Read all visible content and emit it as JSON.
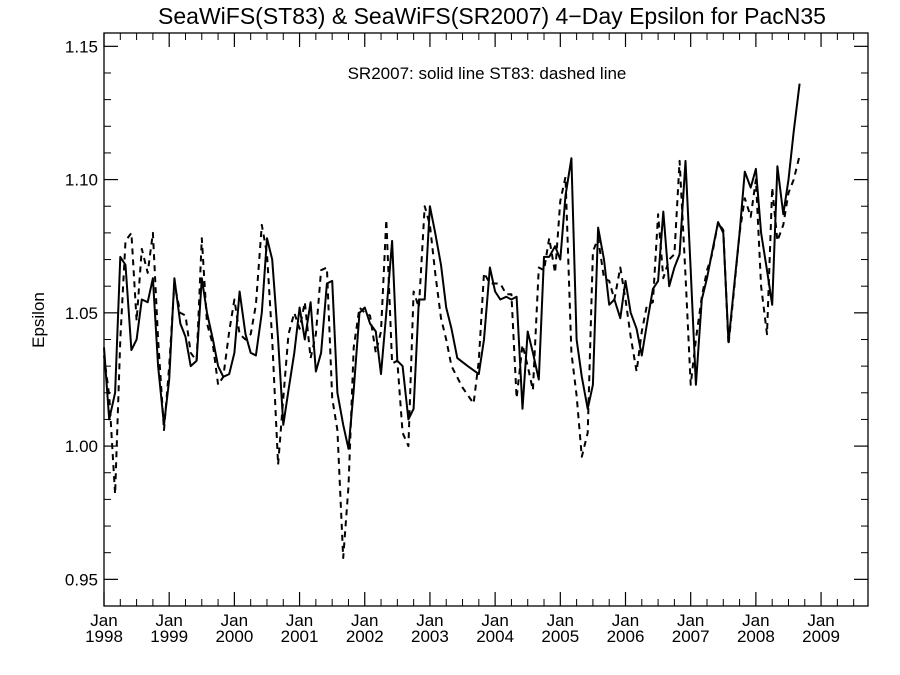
{
  "chart_data": {
    "type": "line",
    "title": "SeaWiFS(ST83) & SeaWiFS(SR2007) 4−Day Epsilon for PacN35",
    "annotation": "SR2007: solid line   ST83: dashed line",
    "xlabel": "",
    "ylabel": "Epsilon",
    "xlim": [
      1998.0,
      2009.72
    ],
    "ylim": [
      0.94,
      1.155
    ],
    "yticks": [
      0.95,
      1.0,
      1.05,
      1.1,
      1.15
    ],
    "ytick_labels": [
      "0.95",
      "1.00",
      "1.05",
      "1.10",
      "1.15"
    ],
    "xticks": [
      {
        "x": 1998,
        "month": "Jan",
        "year": "1998"
      },
      {
        "x": 1999,
        "month": "Jan",
        "year": "1999"
      },
      {
        "x": 2000,
        "month": "Jan",
        "year": "2000"
      },
      {
        "x": 2001,
        "month": "Jan",
        "year": "2001"
      },
      {
        "x": 2002,
        "month": "Jan",
        "year": "2002"
      },
      {
        "x": 2003,
        "month": "Jan",
        "year": "2003"
      },
      {
        "x": 2004,
        "month": "Jan",
        "year": "2004"
      },
      {
        "x": 2005,
        "month": "Jan",
        "year": "2005"
      },
      {
        "x": 2006,
        "month": "Jan",
        "year": "2006"
      },
      {
        "x": 2007,
        "month": "Jan",
        "year": "2007"
      },
      {
        "x": 2008,
        "month": "Jan",
        "year": "2008"
      },
      {
        "x": 2009,
        "month": "Jan",
        "year": "2009"
      }
    ],
    "grid": false,
    "series": [
      {
        "name": "SR2007",
        "style": "solid",
        "color": "#000000",
        "points": [
          [
            1998.0,
            1.037
          ],
          [
            1998.08,
            1.01
          ],
          [
            1998.17,
            1.02
          ],
          [
            1998.25,
            1.071
          ],
          [
            1998.33,
            1.068
          ],
          [
            1998.42,
            1.036
          ],
          [
            1998.5,
            1.04
          ],
          [
            1998.58,
            1.055
          ],
          [
            1998.67,
            1.054
          ],
          [
            1998.75,
            1.063
          ],
          [
            1998.83,
            1.03
          ],
          [
            1998.92,
            1.008
          ],
          [
            1999.0,
            1.025
          ],
          [
            1999.08,
            1.063
          ],
          [
            1999.17,
            1.046
          ],
          [
            1999.25,
            1.041
          ],
          [
            1999.33,
            1.03
          ],
          [
            1999.42,
            1.032
          ],
          [
            1999.5,
            1.063
          ],
          [
            1999.58,
            1.05
          ],
          [
            1999.67,
            1.04
          ],
          [
            1999.75,
            1.03
          ],
          [
            1999.83,
            1.026
          ],
          [
            1999.92,
            1.027
          ],
          [
            2000.0,
            1.035
          ],
          [
            2000.08,
            1.058
          ],
          [
            2000.17,
            1.042
          ],
          [
            2000.25,
            1.035
          ],
          [
            2000.33,
            1.034
          ],
          [
            2000.42,
            1.05
          ],
          [
            2000.5,
            1.078
          ],
          [
            2000.58,
            1.07
          ],
          [
            2000.67,
            1.04
          ],
          [
            2000.75,
            1.008
          ],
          [
            2000.83,
            1.021
          ],
          [
            2000.92,
            1.035
          ],
          [
            2001.0,
            1.052
          ],
          [
            2001.08,
            1.04
          ],
          [
            2001.17,
            1.054
          ],
          [
            2001.25,
            1.028
          ],
          [
            2001.33,
            1.035
          ],
          [
            2001.42,
            1.061
          ],
          [
            2001.5,
            1.062
          ],
          [
            2001.58,
            1.02
          ],
          [
            2001.67,
            1.008
          ],
          [
            2001.75,
            0.999
          ],
          [
            2001.83,
            1.021
          ],
          [
            2001.92,
            1.05
          ],
          [
            2002.0,
            1.052
          ],
          [
            2002.08,
            1.046
          ],
          [
            2002.17,
            1.043
          ],
          [
            2002.25,
            1.027
          ],
          [
            2002.33,
            1.05
          ],
          [
            2002.42,
            1.077
          ],
          [
            2002.5,
            1.032
          ],
          [
            2002.58,
            1.03
          ],
          [
            2002.67,
            1.01
          ],
          [
            2002.75,
            1.014
          ],
          [
            2002.83,
            1.055
          ],
          [
            2002.92,
            1.055
          ],
          [
            2003.0,
            1.09
          ],
          [
            2003.08,
            1.08
          ],
          [
            2003.17,
            1.068
          ],
          [
            2003.25,
            1.052
          ],
          [
            2003.33,
            1.044
          ],
          [
            2003.42,
            1.033
          ],
          [
            2003.58,
            1.03
          ],
          [
            2003.75,
            1.027
          ],
          [
            2003.83,
            1.04
          ],
          [
            2003.92,
            1.067
          ],
          [
            2004.0,
            1.058
          ],
          [
            2004.08,
            1.055
          ],
          [
            2004.17,
            1.056
          ],
          [
            2004.25,
            1.055
          ],
          [
            2004.33,
            1.056
          ],
          [
            2004.42,
            1.014
          ],
          [
            2004.5,
            1.043
          ],
          [
            2004.58,
            1.035
          ],
          [
            2004.67,
            1.025
          ],
          [
            2004.75,
            1.071
          ],
          [
            2004.83,
            1.071
          ],
          [
            2004.92,
            1.075
          ],
          [
            2005.0,
            1.07
          ],
          [
            2005.08,
            1.094
          ],
          [
            2005.17,
            1.108
          ],
          [
            2005.25,
            1.04
          ],
          [
            2005.33,
            1.026
          ],
          [
            2005.42,
            1.014
          ],
          [
            2005.5,
            1.023
          ],
          [
            2005.58,
            1.082
          ],
          [
            2005.67,
            1.07
          ],
          [
            2005.75,
            1.053
          ],
          [
            2005.83,
            1.055
          ],
          [
            2005.92,
            1.048
          ],
          [
            2006.0,
            1.062
          ],
          [
            2006.08,
            1.05
          ],
          [
            2006.17,
            1.044
          ],
          [
            2006.25,
            1.034
          ],
          [
            2006.33,
            1.046
          ],
          [
            2006.42,
            1.059
          ],
          [
            2006.5,
            1.062
          ],
          [
            2006.58,
            1.088
          ],
          [
            2006.67,
            1.06
          ],
          [
            2006.75,
            1.067
          ],
          [
            2006.83,
            1.072
          ],
          [
            2006.92,
            1.107
          ],
          [
            2007.0,
            1.066
          ],
          [
            2007.08,
            1.023
          ],
          [
            2007.17,
            1.055
          ],
          [
            2007.25,
            1.063
          ],
          [
            2007.33,
            1.073
          ],
          [
            2007.42,
            1.084
          ],
          [
            2007.5,
            1.08
          ],
          [
            2007.58,
            1.039
          ],
          [
            2007.67,
            1.061
          ],
          [
            2007.75,
            1.08
          ],
          [
            2007.83,
            1.103
          ],
          [
            2007.92,
            1.097
          ],
          [
            2008.0,
            1.104
          ],
          [
            2008.08,
            1.08
          ],
          [
            2008.17,
            1.066
          ],
          [
            2008.25,
            1.053
          ],
          [
            2008.33,
            1.105
          ],
          [
            2008.42,
            1.087
          ],
          [
            2008.5,
            1.1
          ],
          [
            2008.58,
            1.118
          ],
          [
            2008.67,
            1.136
          ]
        ]
      },
      {
        "name": "ST83",
        "style": "dashed",
        "color": "#000000",
        "points": [
          [
            1998.0,
            1.034
          ],
          [
            1998.08,
            1.019
          ],
          [
            1998.17,
            0.982
          ],
          [
            1998.25,
            1.04
          ],
          [
            1998.33,
            1.077
          ],
          [
            1998.42,
            1.08
          ],
          [
            1998.5,
            1.047
          ],
          [
            1998.58,
            1.074
          ],
          [
            1998.67,
            1.065
          ],
          [
            1998.75,
            1.08
          ],
          [
            1998.83,
            1.04
          ],
          [
            1998.92,
            1.006
          ],
          [
            1999.0,
            1.03
          ],
          [
            1999.08,
            1.061
          ],
          [
            1999.17,
            1.05
          ],
          [
            1999.25,
            1.049
          ],
          [
            1999.33,
            1.035
          ],
          [
            1999.42,
            1.032
          ],
          [
            1999.5,
            1.078
          ],
          [
            1999.58,
            1.046
          ],
          [
            1999.67,
            1.038
          ],
          [
            1999.75,
            1.023
          ],
          [
            1999.83,
            1.026
          ],
          [
            1999.92,
            1.043
          ],
          [
            2000.0,
            1.055
          ],
          [
            2000.08,
            1.042
          ],
          [
            2000.17,
            1.04
          ],
          [
            2000.25,
            1.042
          ],
          [
            2000.33,
            1.053
          ],
          [
            2000.42,
            1.083
          ],
          [
            2000.5,
            1.072
          ],
          [
            2000.58,
            1.04
          ],
          [
            2000.67,
            0.993
          ],
          [
            2000.75,
            1.018
          ],
          [
            2000.83,
            1.042
          ],
          [
            2000.92,
            1.05
          ],
          [
            2001.0,
            1.044
          ],
          [
            2001.08,
            1.054
          ],
          [
            2001.17,
            1.033
          ],
          [
            2001.25,
            1.042
          ],
          [
            2001.33,
            1.066
          ],
          [
            2001.42,
            1.067
          ],
          [
            2001.5,
            1.018
          ],
          [
            2001.58,
            1.006
          ],
          [
            2001.67,
            0.958
          ],
          [
            2001.75,
            0.985
          ],
          [
            2001.83,
            1.037
          ],
          [
            2001.92,
            1.052
          ],
          [
            2002.0,
            1.05
          ],
          [
            2002.08,
            1.049
          ],
          [
            2002.17,
            1.035
          ],
          [
            2002.25,
            1.043
          ],
          [
            2002.33,
            1.085
          ],
          [
            2002.42,
            1.031
          ],
          [
            2002.5,
            1.032
          ],
          [
            2002.58,
            1.005
          ],
          [
            2002.67,
            1.0
          ],
          [
            2002.75,
            1.058
          ],
          [
            2002.83,
            1.052
          ],
          [
            2002.92,
            1.09
          ],
          [
            2003.0,
            1.083
          ],
          [
            2003.08,
            1.065
          ],
          [
            2003.17,
            1.048
          ],
          [
            2003.25,
            1.04
          ],
          [
            2003.33,
            1.03
          ],
          [
            2003.5,
            1.022
          ],
          [
            2003.67,
            1.016
          ],
          [
            2003.75,
            1.032
          ],
          [
            2003.83,
            1.065
          ],
          [
            2003.92,
            1.061
          ],
          [
            2004.0,
            1.061
          ],
          [
            2004.08,
            1.061
          ],
          [
            2004.17,
            1.057
          ],
          [
            2004.25,
            1.057
          ],
          [
            2004.33,
            1.018
          ],
          [
            2004.42,
            1.038
          ],
          [
            2004.5,
            1.03
          ],
          [
            2004.58,
            1.021
          ],
          [
            2004.67,
            1.067
          ],
          [
            2004.75,
            1.066
          ],
          [
            2004.83,
            1.078
          ],
          [
            2004.92,
            1.065
          ],
          [
            2005.0,
            1.092
          ],
          [
            2005.08,
            1.101
          ],
          [
            2005.17,
            1.035
          ],
          [
            2005.25,
            1.019
          ],
          [
            2005.33,
            0.996
          ],
          [
            2005.42,
            1.005
          ],
          [
            2005.5,
            1.073
          ],
          [
            2005.58,
            1.078
          ],
          [
            2005.67,
            1.063
          ],
          [
            2005.75,
            1.062
          ],
          [
            2005.83,
            1.055
          ],
          [
            2005.92,
            1.067
          ],
          [
            2006.0,
            1.055
          ],
          [
            2006.08,
            1.041
          ],
          [
            2006.17,
            1.028
          ],
          [
            2006.25,
            1.043
          ],
          [
            2006.33,
            1.053
          ],
          [
            2006.42,
            1.054
          ],
          [
            2006.5,
            1.087
          ],
          [
            2006.58,
            1.063
          ],
          [
            2006.67,
            1.07
          ],
          [
            2006.75,
            1.072
          ],
          [
            2006.83,
            1.107
          ],
          [
            2006.92,
            1.064
          ],
          [
            2007.0,
            1.023
          ],
          [
            2007.08,
            1.04
          ],
          [
            2007.17,
            1.056
          ],
          [
            2007.25,
            1.066
          ],
          [
            2007.33,
            1.072
          ],
          [
            2007.42,
            1.084
          ],
          [
            2007.5,
            1.081
          ],
          [
            2007.58,
            1.038
          ],
          [
            2007.67,
            1.06
          ],
          [
            2007.75,
            1.08
          ],
          [
            2007.83,
            1.093
          ],
          [
            2007.92,
            1.086
          ],
          [
            2008.0,
            1.1
          ],
          [
            2008.08,
            1.06
          ],
          [
            2008.17,
            1.042
          ],
          [
            2008.25,
            1.097
          ],
          [
            2008.33,
            1.077
          ],
          [
            2008.42,
            1.083
          ],
          [
            2008.5,
            1.095
          ],
          [
            2008.58,
            1.1
          ],
          [
            2008.67,
            1.109
          ]
        ]
      }
    ]
  }
}
